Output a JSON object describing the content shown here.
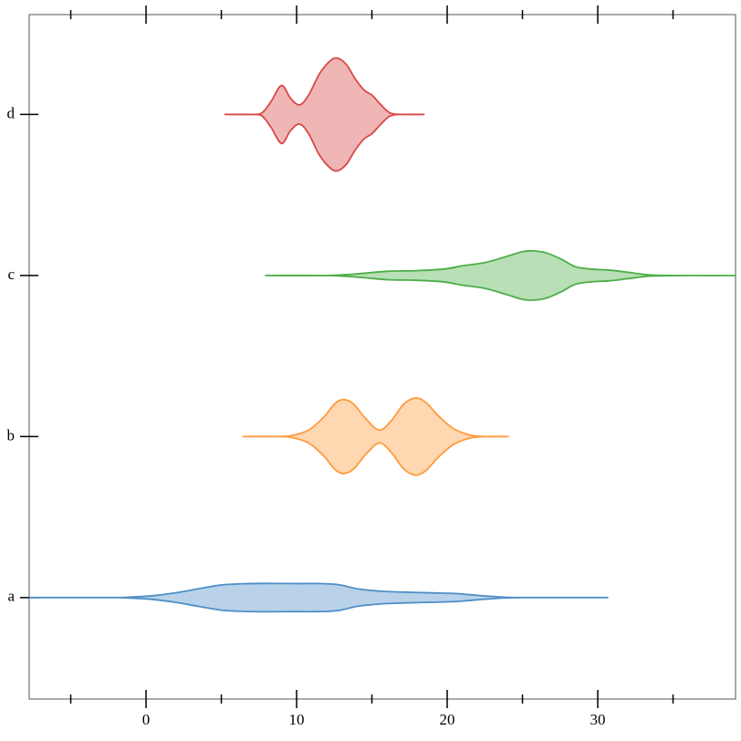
{
  "chart_data": {
    "type": "violin",
    "categories": [
      "a",
      "b",
      "c",
      "d"
    ],
    "xlim": [
      -7.76,
      39.15
    ],
    "xticks": [
      0,
      10,
      20,
      30
    ],
    "xminor_ticks": [
      -5,
      5,
      15,
      25,
      35
    ],
    "ylim": [
      -0.63,
      3.62
    ],
    "series": [
      {
        "color": "#4f8fc8",
        "x": [
          -7.76,
          -2.5,
          -1,
          0.5,
          2,
          3.5,
          5,
          6.5,
          8,
          10,
          11.5,
          12.8,
          14,
          15.5,
          17,
          19,
          20.5,
          22,
          23.5,
          25,
          30.7
        ],
        "widths": [
          0,
          0,
          0.003,
          0.012,
          0.03,
          0.055,
          0.078,
          0.086,
          0.088,
          0.087,
          0.087,
          0.08,
          0.055,
          0.04,
          0.034,
          0.029,
          0.025,
          0.014,
          0.004,
          0,
          0
        ]
      },
      {
        "color": "#ff9b3d",
        "x": [
          6.4,
          8.5,
          9.6,
          10.8,
          11.8,
          12.5,
          13.1,
          13.8,
          14.6,
          15.5,
          16.3,
          17.1,
          17.9,
          18.6,
          19.4,
          20.4,
          21.5,
          22.5,
          24.1
        ],
        "widths": [
          0,
          0,
          0.005,
          0.04,
          0.12,
          0.2,
          0.23,
          0.2,
          0.11,
          0.04,
          0.1,
          0.2,
          0.24,
          0.21,
          0.13,
          0.05,
          0.01,
          0,
          0
        ]
      },
      {
        "color": "#4dae48",
        "x": [
          7.9,
          12,
          14,
          16,
          18,
          19.8,
          21,
          22.5,
          24,
          25,
          25.7,
          26.6,
          27.6,
          28.5,
          29.5,
          30.8,
          32,
          33.6,
          36,
          39.15
        ],
        "widths": [
          0,
          0,
          0.01,
          0.026,
          0.03,
          0.04,
          0.06,
          0.08,
          0.12,
          0.148,
          0.153,
          0.14,
          0.1,
          0.055,
          0.04,
          0.033,
          0.02,
          0.003,
          0,
          0
        ]
      },
      {
        "color": "#d94848",
        "x": [
          5.2,
          7,
          7.7,
          8.3,
          9,
          9.6,
          10.2,
          10.8,
          11.5,
          12.2,
          12.7,
          13.3,
          13.9,
          14.5,
          15,
          15.6,
          16.2,
          17,
          18.5
        ],
        "widths": [
          0,
          0,
          0.01,
          0.08,
          0.18,
          0.1,
          0.06,
          0.12,
          0.25,
          0.33,
          0.35,
          0.31,
          0.22,
          0.15,
          0.12,
          0.06,
          0.01,
          0,
          0
        ]
      }
    ]
  }
}
